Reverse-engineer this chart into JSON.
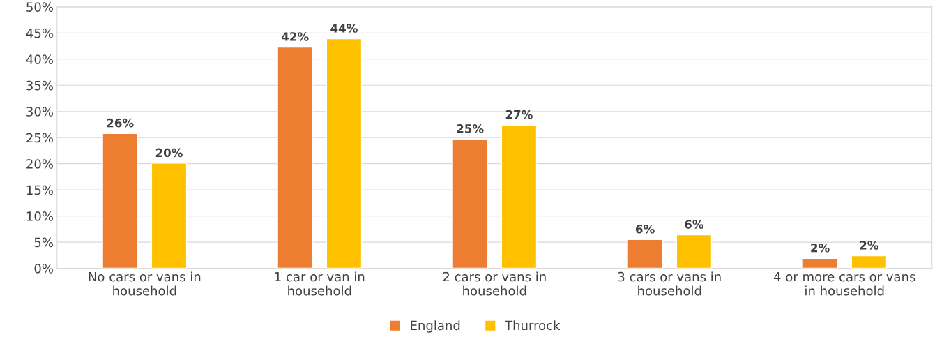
{
  "chart_data": {
    "type": "bar",
    "categories": [
      "No cars or vans in household",
      "1 car or van in household",
      "2 cars or vans in household",
      "3 cars or vans in household",
      "4 or more cars or vans in household"
    ],
    "series": [
      {
        "name": "England",
        "color": "#ed7d31",
        "values": [
          25.8,
          42.3,
          24.7,
          5.5,
          1.9
        ],
        "value_labels": [
          "26%",
          "42%",
          "25%",
          "6%",
          "2%"
        ]
      },
      {
        "name": "Thurrock",
        "color": "#ffc000",
        "values": [
          20.1,
          43.9,
          27.4,
          6.4,
          2.4
        ],
        "value_labels": [
          "20%",
          "44%",
          "27%",
          "6%",
          "2%"
        ]
      }
    ],
    "ylim": [
      0,
      50
    ],
    "yticks": [
      {
        "value": 0,
        "label": "0%"
      },
      {
        "value": 5,
        "label": "5%"
      },
      {
        "value": 10,
        "label": "10%"
      },
      {
        "value": 15,
        "label": "15%"
      },
      {
        "value": 20,
        "label": "20%"
      },
      {
        "value": 25,
        "label": "25%"
      },
      {
        "value": 30,
        "label": "30%"
      },
      {
        "value": 35,
        "label": "35%"
      },
      {
        "value": 40,
        "label": "40%"
      },
      {
        "value": 45,
        "label": "45%"
      },
      {
        "value": 50,
        "label": "50%"
      }
    ],
    "grid": "y",
    "legend": "bottom"
  }
}
